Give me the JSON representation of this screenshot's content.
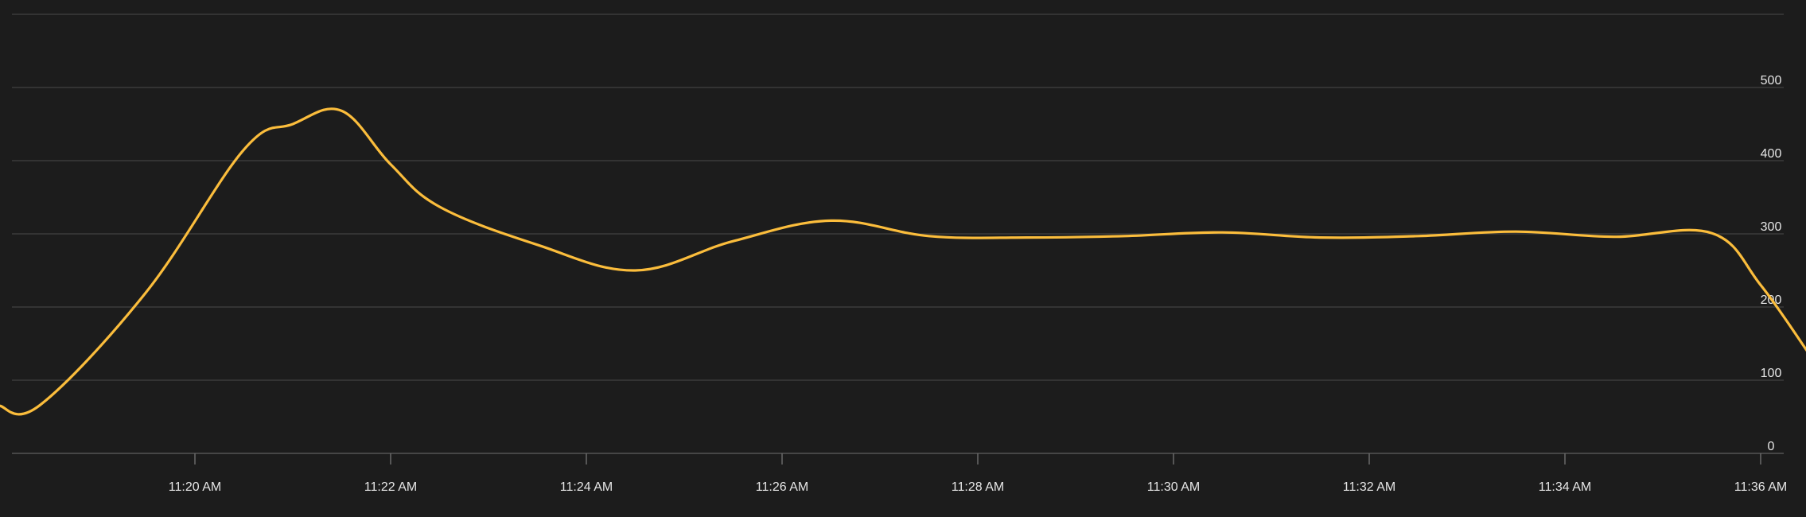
{
  "colors": {
    "background": "#1c1c1c",
    "series_line": "#fbbd3c",
    "grid": "#3b3b3b",
    "text": "#e6e6e6"
  },
  "chart_data": {
    "type": "line",
    "title": "",
    "xlabel": "",
    "ylabel": "",
    "grid": true,
    "y_axis_position": "right",
    "ylim": [
      0,
      600
    ],
    "y_ticks": [
      0,
      100,
      200,
      300,
      400,
      500
    ],
    "xlim": [
      "11:18",
      "11:36:30"
    ],
    "x_ticks": [
      {
        "t": "11:20",
        "label": "11:20 AM"
      },
      {
        "t": "11:22",
        "label": "11:22 AM"
      },
      {
        "t": "11:24",
        "label": "11:24 AM"
      },
      {
        "t": "11:26",
        "label": "11:26 AM"
      },
      {
        "t": "11:28",
        "label": "11:28 AM"
      },
      {
        "t": "11:30",
        "label": "11:30 AM"
      },
      {
        "t": "11:32",
        "label": "11:32 AM"
      },
      {
        "t": "11:34",
        "label": "11:34 AM"
      },
      {
        "t": "11:36",
        "label": "11:36 AM"
      }
    ],
    "series": [
      {
        "color": "#fbbd3c",
        "points": [
          {
            "t": "11:18",
            "y": 65
          },
          {
            "t": "11:18:25",
            "y": 66
          },
          {
            "t": "11:19:30",
            "y": 220
          },
          {
            "t": "11:20:30",
            "y": 415
          },
          {
            "t": "11:21:00",
            "y": 450
          },
          {
            "t": "11:21:30",
            "y": 468
          },
          {
            "t": "11:22:00",
            "y": 395
          },
          {
            "t": "11:22:30",
            "y": 337
          },
          {
            "t": "11:23:30",
            "y": 285
          },
          {
            "t": "11:24:30",
            "y": 250
          },
          {
            "t": "11:25:30",
            "y": 290
          },
          {
            "t": "11:26:30",
            "y": 318
          },
          {
            "t": "11:27:30",
            "y": 297
          },
          {
            "t": "11:28:30",
            "y": 295
          },
          {
            "t": "11:29:30",
            "y": 297
          },
          {
            "t": "11:30:30",
            "y": 302
          },
          {
            "t": "11:31:30",
            "y": 295
          },
          {
            "t": "11:32:30",
            "y": 297
          },
          {
            "t": "11:33:30",
            "y": 303
          },
          {
            "t": "11:34:30",
            "y": 296
          },
          {
            "t": "11:35:30",
            "y": 301
          },
          {
            "t": "11:36:00",
            "y": 230
          },
          {
            "t": "11:36:30",
            "y": 135
          }
        ]
      }
    ]
  }
}
